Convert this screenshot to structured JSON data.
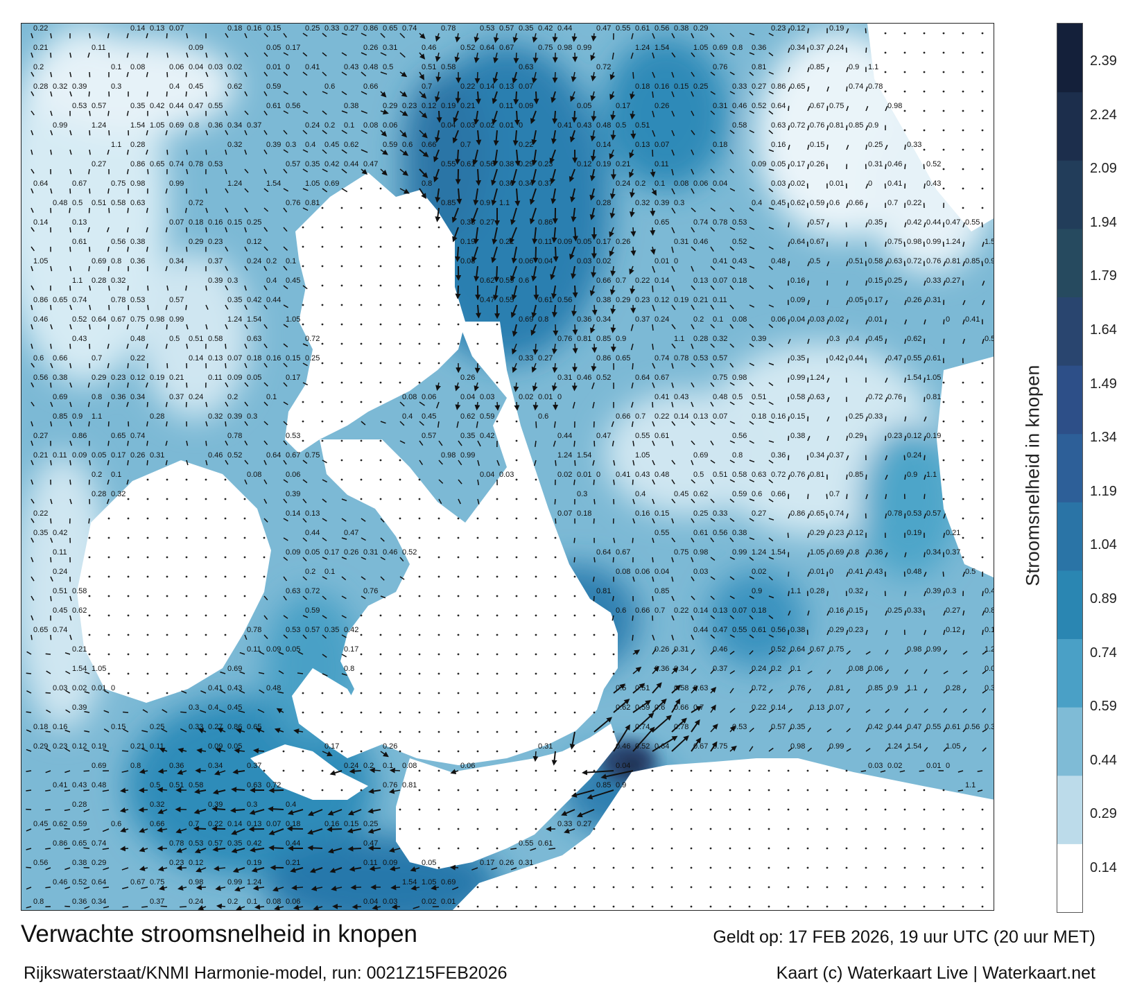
{
  "title": "Verwachte stroomsnelheid in knopen",
  "valid_time": "Geldt op: 17 FEB 2026, 19 uur UTC (20 uur MET)",
  "source": "Rijkswaterstaat/KNMI Harmonie-model, run: 0021Z15FEB2026",
  "copyright": "Kaart (c) Waterkaart Live | Waterkaart.net",
  "colorbar": {
    "label": "Stroomsnelheid in knopen",
    "ticks": [
      "2.39",
      "2.24",
      "2.09",
      "1.94",
      "1.79",
      "1.64",
      "1.49",
      "1.34",
      "1.19",
      "1.04",
      "0.89",
      "0.74",
      "0.59",
      "0.44",
      "0.29",
      "0.14"
    ],
    "range_knots": [
      0,
      2.54
    ],
    "colors": [
      "#ffffff",
      "#bcdbea",
      "#7fbbd6",
      "#4aa0c6",
      "#2a86b2",
      "#2a74a6",
      "#2d5f98",
      "#2d4f88",
      "#29456f",
      "#264a5f",
      "#223d5a",
      "#1c2e4c",
      "#14203a"
    ]
  },
  "speed_labels": [
    {
      "v": "0.22"
    },
    {
      "v": "0.14"
    },
    {
      "v": "0.13"
    },
    {
      "v": "0.07"
    },
    {
      "v": "0.18"
    },
    {
      "v": "0.16"
    },
    {
      "v": "0.15"
    },
    {
      "v": "0.25"
    },
    {
      "v": "0.33"
    },
    {
      "v": "0.27"
    },
    {
      "v": "0.86"
    },
    {
      "v": "0.65"
    },
    {
      "v": "0.74"
    },
    {
      "v": "0.78"
    },
    {
      "v": "0.53"
    },
    {
      "v": "0.57"
    },
    {
      "v": "0.35"
    },
    {
      "v": "0.42"
    },
    {
      "v": "0.44"
    },
    {
      "v": "0.47"
    },
    {
      "v": "0.55"
    },
    {
      "v": "0.61"
    },
    {
      "v": "0.56"
    },
    {
      "v": "0.38"
    },
    {
      "v": "0.29"
    },
    {
      "v": "0.23"
    },
    {
      "v": "0.12"
    },
    {
      "v": "0.19"
    },
    {
      "v": "0.21"
    },
    {
      "v": "0.11"
    },
    {
      "v": "0.09"
    },
    {
      "v": "0.05"
    },
    {
      "v": "0.17"
    },
    {
      "v": "0.26"
    },
    {
      "v": "0.31"
    },
    {
      "v": "0.46"
    },
    {
      "v": "0.52"
    },
    {
      "v": "0.64"
    },
    {
      "v": "0.67"
    },
    {
      "v": "0.75"
    },
    {
      "v": "0.98"
    },
    {
      "v": "0.99"
    },
    {
      "v": "1.24"
    },
    {
      "v": "1.54"
    },
    {
      "v": "1.05"
    },
    {
      "v": "0.69"
    },
    {
      "v": "0.8"
    },
    {
      "v": "0.36"
    },
    {
      "v": "0.34"
    },
    {
      "v": "0.37"
    },
    {
      "v": "0.24"
    },
    {
      "v": "0.2"
    },
    {
      "v": "0.1"
    },
    {
      "v": "0.08"
    },
    {
      "v": "0.06"
    },
    {
      "v": "0.04"
    },
    {
      "v": "0.03"
    },
    {
      "v": "0.02"
    },
    {
      "v": "0.01"
    },
    {
      "v": "0"
    },
    {
      "v": "0.41"
    },
    {
      "v": "0.43"
    },
    {
      "v": "0.48"
    },
    {
      "v": "0.5"
    },
    {
      "v": "0.51"
    },
    {
      "v": "0.58"
    },
    {
      "v": "0.63"
    },
    {
      "v": "0.72"
    },
    {
      "v": "0.76"
    },
    {
      "v": "0.81"
    },
    {
      "v": "0.85"
    },
    {
      "v": "0.9"
    },
    {
      "v": "1.1"
    },
    {
      "v": "0.28"
    },
    {
      "v": "0.32"
    },
    {
      "v": "0.39"
    },
    {
      "v": "0.3"
    },
    {
      "v": "0.4"
    },
    {
      "v": "0.45"
    },
    {
      "v": "0.62"
    },
    {
      "v": "0.59"
    },
    {
      "v": "0.6"
    },
    {
      "v": "0.66"
    },
    {
      "v": "0.7"
    }
  ]
}
